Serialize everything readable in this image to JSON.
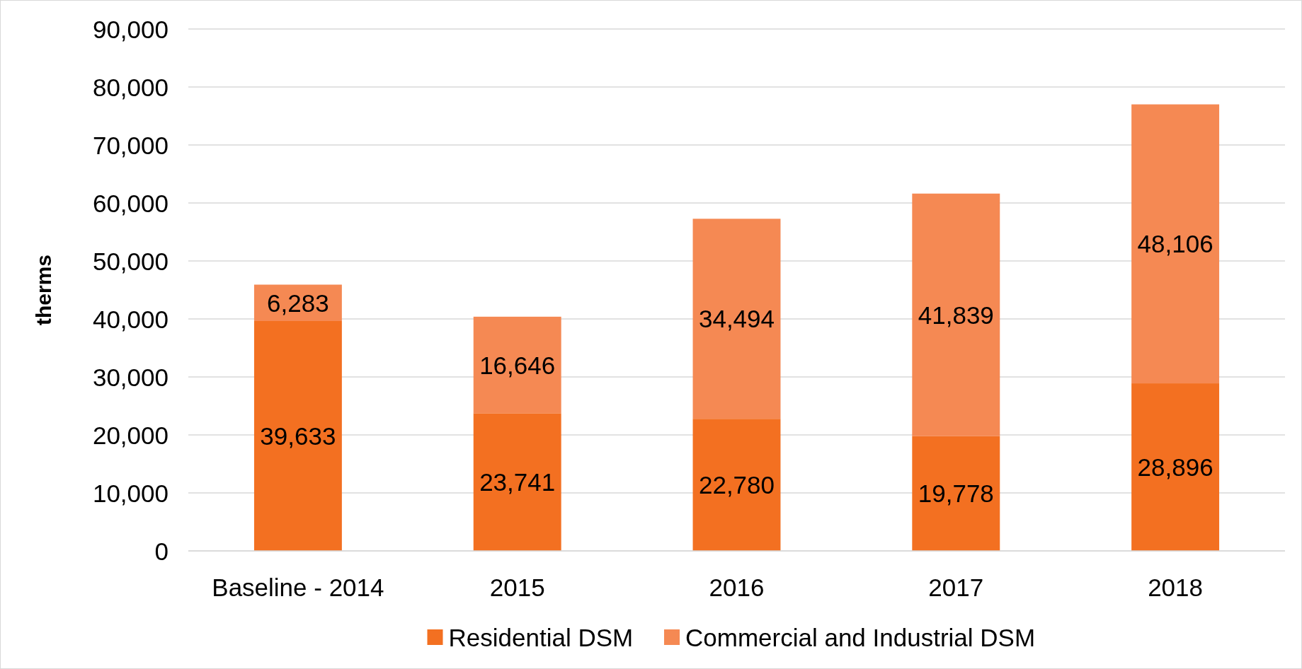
{
  "chart_data": {
    "type": "bar",
    "stacked": true,
    "ylabel": "therms",
    "categories": [
      "Baseline - 2014",
      "2015",
      "2016",
      "2017",
      "2018"
    ],
    "series": [
      {
        "name": "Residential DSM",
        "color": "#f37021",
        "values": [
          39633,
          23741,
          22780,
          19778,
          28896
        ],
        "value_labels": [
          "39,633",
          "23,741",
          "22,780",
          "19,778",
          "28,896"
        ]
      },
      {
        "name": "Commercial and Industrial DSM",
        "color": "#f58953",
        "values": [
          6283,
          16646,
          34494,
          41839,
          48106
        ],
        "value_labels": [
          "6,283",
          "16,646",
          "34,494",
          "41,839",
          "48,106"
        ]
      }
    ],
    "ylim": [
      0,
      90000
    ],
    "yticks": [
      {
        "value": 0,
        "label": "0"
      },
      {
        "value": 10000,
        "label": "10,000"
      },
      {
        "value": 20000,
        "label": "20,000"
      },
      {
        "value": 30000,
        "label": "30,000"
      },
      {
        "value": 40000,
        "label": "40,000"
      },
      {
        "value": 50000,
        "label": "50,000"
      },
      {
        "value": 60000,
        "label": "60,000"
      },
      {
        "value": 70000,
        "label": "70,000"
      },
      {
        "value": 80000,
        "label": "80,000"
      },
      {
        "value": 90000,
        "label": "90,000"
      }
    ],
    "grid": "y",
    "legend": "bottom"
  }
}
